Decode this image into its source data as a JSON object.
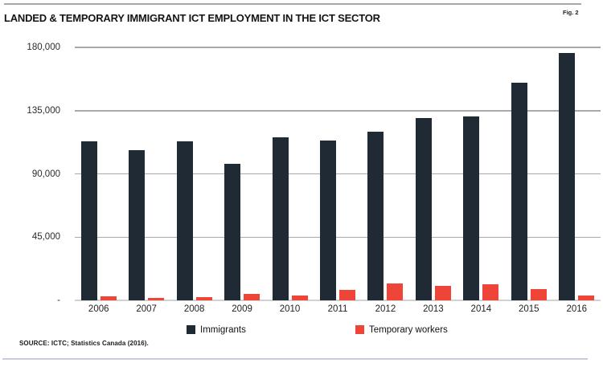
{
  "header": {
    "title": "LANDED & TEMPORARY IMMIGRANT ICT EMPLOYMENT IN THE ICT SECTOR",
    "fig_label": "Fig. 2"
  },
  "legend": {
    "items": [
      {
        "label": "Immigrants",
        "color": "#202a35"
      },
      {
        "label": "Temporary workers",
        "color": "#ef4438"
      }
    ]
  },
  "footer": {
    "source": "SOURCE: ICTC; Statistics Canada (2016)."
  },
  "colors": {
    "immigrants_bar": "#202a35",
    "temporary_bar": "#ef4438",
    "gridline": "#a9a9a9",
    "axis_baseline": "#d2d2d2",
    "top_rule": "#a8a8a8",
    "bottom_rule": "#c9cdd8"
  },
  "chart_data": {
    "type": "bar",
    "title": "LANDED & TEMPORARY IMMIGRANT ICT EMPLOYMENT IN THE ICT SECTOR",
    "categories": [
      "2006",
      "2007",
      "2008",
      "2009",
      "2010",
      "2011",
      "2012",
      "2013",
      "2014",
      "2015",
      "2016"
    ],
    "series": [
      {
        "name": "Immigrants",
        "color": "#202a35",
        "values": [
          113000,
          107000,
          113000,
          97000,
          116000,
          114000,
          120000,
          130000,
          131000,
          155000,
          176000
        ]
      },
      {
        "name": "Temporary workers",
        "color": "#ef4438",
        "values": [
          3000,
          2000,
          2300,
          4300,
          3700,
          7400,
          12000,
          10200,
          11300,
          7900,
          3700
        ]
      }
    ],
    "ylim": [
      0,
      180000
    ],
    "yticks": [
      {
        "value": 180000,
        "label": "180,000"
      },
      {
        "value": 135000,
        "label": "135,000"
      },
      {
        "value": 90000,
        "label": "90,000"
      },
      {
        "value": 45000,
        "label": "45,000"
      },
      {
        "value": 0,
        "label": "-"
      }
    ],
    "grid": true,
    "legend_position": "bottom"
  }
}
